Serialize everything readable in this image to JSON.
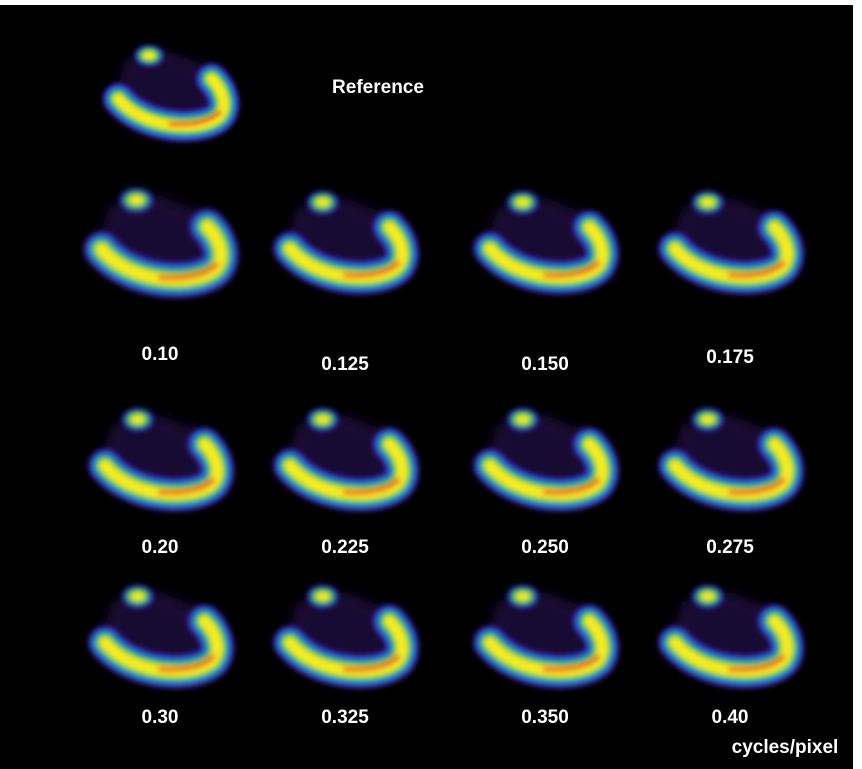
{
  "reference": {
    "label": "Reference"
  },
  "panels": [
    {
      "label": "0.10"
    },
    {
      "label": "0.125"
    },
    {
      "label": "0.150"
    },
    {
      "label": "0.175"
    },
    {
      "label": "0.20"
    },
    {
      "label": "0.225"
    },
    {
      "label": "0.250"
    },
    {
      "label": "0.275"
    },
    {
      "label": "0.30"
    },
    {
      "label": "0.325"
    },
    {
      "label": "0.350"
    },
    {
      "label": "0.40"
    }
  ],
  "unit": "cycles/pixel"
}
